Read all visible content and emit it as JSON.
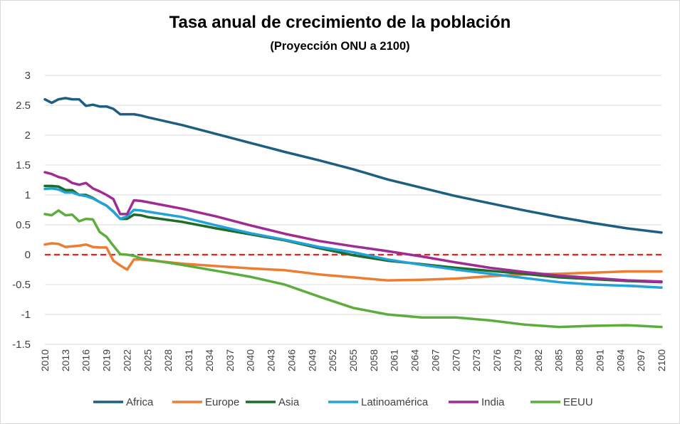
{
  "chart_data": {
    "type": "line",
    "title": "Tasa anual de crecimiento de la población",
    "subtitle": "(Proyección ONU a  2100)",
    "xlabel": "",
    "ylabel": "",
    "xlim": [
      2010,
      2100
    ],
    "ylim": [
      -1.5,
      3
    ],
    "yticks": [
      3,
      2.5,
      2,
      1.5,
      1,
      0.5,
      0,
      -0.5,
      -1,
      -1.5
    ],
    "ytick_labels": [
      "3",
      "2.5",
      "2",
      "1.5",
      "1",
      "0.5",
      "0",
      "-0.5",
      "-1",
      "-1.5"
    ],
    "xticks": [
      2010,
      2013,
      2016,
      2019,
      2022,
      2025,
      2028,
      2031,
      2034,
      2037,
      2040,
      2043,
      2046,
      2049,
      2052,
      2055,
      2058,
      2061,
      2064,
      2067,
      2070,
      2073,
      2076,
      2079,
      2082,
      2085,
      2088,
      2091,
      2094,
      2097,
      2100
    ],
    "grid": true,
    "legend_position": "bottom",
    "reference_line": {
      "y": 0,
      "color": "#e8231f",
      "style": "dashed"
    },
    "series": [
      {
        "name": "Africa",
        "color": "#1c5f82",
        "points": [
          [
            2010,
            2.6
          ],
          [
            2011,
            2.54
          ],
          [
            2012,
            2.6
          ],
          [
            2013,
            2.62
          ],
          [
            2014,
            2.6
          ],
          [
            2015,
            2.6
          ],
          [
            2016,
            2.49
          ],
          [
            2017,
            2.51
          ],
          [
            2018,
            2.48
          ],
          [
            2019,
            2.48
          ],
          [
            2020,
            2.44
          ],
          [
            2021,
            2.35
          ],
          [
            2022,
            2.35
          ],
          [
            2023,
            2.35
          ],
          [
            2024,
            2.33
          ],
          [
            2025,
            2.3
          ],
          [
            2030,
            2.17
          ],
          [
            2035,
            2.02
          ],
          [
            2040,
            1.87
          ],
          [
            2045,
            1.72
          ],
          [
            2050,
            1.58
          ],
          [
            2055,
            1.43
          ],
          [
            2060,
            1.26
          ],
          [
            2065,
            1.12
          ],
          [
            2070,
            0.98
          ],
          [
            2075,
            0.86
          ],
          [
            2080,
            0.74
          ],
          [
            2085,
            0.63
          ],
          [
            2090,
            0.53
          ],
          [
            2095,
            0.44
          ],
          [
            2100,
            0.37
          ]
        ]
      },
      {
        "name": "Europe",
        "color": "#ed7d31",
        "points": [
          [
            2010,
            0.17
          ],
          [
            2011,
            0.19
          ],
          [
            2012,
            0.18
          ],
          [
            2013,
            0.13
          ],
          [
            2014,
            0.14
          ],
          [
            2015,
            0.15
          ],
          [
            2016,
            0.17
          ],
          [
            2017,
            0.13
          ],
          [
            2018,
            0.12
          ],
          [
            2019,
            0.12
          ],
          [
            2020,
            -0.1
          ],
          [
            2021,
            -0.18
          ],
          [
            2022,
            -0.25
          ],
          [
            2023,
            -0.08
          ],
          [
            2024,
            -0.08
          ],
          [
            2025,
            -0.09
          ],
          [
            2030,
            -0.15
          ],
          [
            2035,
            -0.19
          ],
          [
            2040,
            -0.23
          ],
          [
            2045,
            -0.26
          ],
          [
            2050,
            -0.33
          ],
          [
            2055,
            -0.38
          ],
          [
            2060,
            -0.43
          ],
          [
            2065,
            -0.42
          ],
          [
            2070,
            -0.4
          ],
          [
            2075,
            -0.36
          ],
          [
            2080,
            -0.33
          ],
          [
            2085,
            -0.32
          ],
          [
            2090,
            -0.3
          ],
          [
            2095,
            -0.28
          ],
          [
            2100,
            -0.28
          ]
        ]
      },
      {
        "name": "Asia",
        "color": "#1e6b2a",
        "points": [
          [
            2010,
            1.15
          ],
          [
            2011,
            1.15
          ],
          [
            2012,
            1.14
          ],
          [
            2013,
            1.08
          ],
          [
            2014,
            1.08
          ],
          [
            2015,
            1.0
          ],
          [
            2016,
            1.0
          ],
          [
            2017,
            0.95
          ],
          [
            2018,
            0.88
          ],
          [
            2019,
            0.82
          ],
          [
            2020,
            0.72
          ],
          [
            2021,
            0.6
          ],
          [
            2022,
            0.6
          ],
          [
            2023,
            0.67
          ],
          [
            2024,
            0.66
          ],
          [
            2025,
            0.63
          ],
          [
            2030,
            0.55
          ],
          [
            2035,
            0.44
          ],
          [
            2040,
            0.34
          ],
          [
            2045,
            0.24
          ],
          [
            2050,
            0.11
          ],
          [
            2055,
            -0.01
          ],
          [
            2060,
            -0.1
          ],
          [
            2065,
            -0.16
          ],
          [
            2070,
            -0.22
          ],
          [
            2075,
            -0.27
          ],
          [
            2080,
            -0.32
          ],
          [
            2085,
            -0.38
          ],
          [
            2090,
            -0.41
          ],
          [
            2095,
            -0.44
          ],
          [
            2100,
            -0.46
          ]
        ]
      },
      {
        "name": "Latinoamérica",
        "color": "#1fa3d9",
        "points": [
          [
            2010,
            1.1
          ],
          [
            2011,
            1.11
          ],
          [
            2012,
            1.09
          ],
          [
            2013,
            1.04
          ],
          [
            2014,
            1.04
          ],
          [
            2015,
            1.0
          ],
          [
            2016,
            0.98
          ],
          [
            2017,
            0.94
          ],
          [
            2018,
            0.88
          ],
          [
            2019,
            0.82
          ],
          [
            2020,
            0.72
          ],
          [
            2021,
            0.6
          ],
          [
            2022,
            0.64
          ],
          [
            2023,
            0.75
          ],
          [
            2024,
            0.74
          ],
          [
            2025,
            0.72
          ],
          [
            2030,
            0.63
          ],
          [
            2035,
            0.49
          ],
          [
            2040,
            0.36
          ],
          [
            2045,
            0.25
          ],
          [
            2050,
            0.13
          ],
          [
            2055,
            0.04
          ],
          [
            2060,
            -0.08
          ],
          [
            2065,
            -0.17
          ],
          [
            2070,
            -0.25
          ],
          [
            2075,
            -0.32
          ],
          [
            2080,
            -0.39
          ],
          [
            2085,
            -0.46
          ],
          [
            2090,
            -0.5
          ],
          [
            2095,
            -0.52
          ],
          [
            2100,
            -0.55
          ]
        ]
      },
      {
        "name": "India",
        "color": "#a02b93",
        "points": [
          [
            2010,
            1.38
          ],
          [
            2011,
            1.35
          ],
          [
            2012,
            1.3
          ],
          [
            2013,
            1.27
          ],
          [
            2014,
            1.2
          ],
          [
            2015,
            1.17
          ],
          [
            2016,
            1.2
          ],
          [
            2017,
            1.11
          ],
          [
            2018,
            1.06
          ],
          [
            2019,
            1.0
          ],
          [
            2020,
            0.93
          ],
          [
            2021,
            0.68
          ],
          [
            2022,
            0.68
          ],
          [
            2023,
            0.91
          ],
          [
            2024,
            0.9
          ],
          [
            2025,
            0.88
          ],
          [
            2030,
            0.77
          ],
          [
            2035,
            0.64
          ],
          [
            2040,
            0.49
          ],
          [
            2045,
            0.35
          ],
          [
            2050,
            0.23
          ],
          [
            2055,
            0.14
          ],
          [
            2060,
            0.06
          ],
          [
            2065,
            -0.03
          ],
          [
            2070,
            -0.13
          ],
          [
            2075,
            -0.22
          ],
          [
            2080,
            -0.29
          ],
          [
            2085,
            -0.35
          ],
          [
            2090,
            -0.39
          ],
          [
            2095,
            -0.43
          ],
          [
            2100,
            -0.45
          ]
        ]
      },
      {
        "name": "EEUU",
        "color": "#5cad3c",
        "points": [
          [
            2010,
            0.68
          ],
          [
            2011,
            0.66
          ],
          [
            2012,
            0.74
          ],
          [
            2013,
            0.66
          ],
          [
            2014,
            0.67
          ],
          [
            2015,
            0.56
          ],
          [
            2016,
            0.6
          ],
          [
            2017,
            0.59
          ],
          [
            2018,
            0.38
          ],
          [
            2019,
            0.3
          ],
          [
            2020,
            0.15
          ],
          [
            2021,
            0.01
          ],
          [
            2022,
            0.0
          ],
          [
            2023,
            -0.02
          ],
          [
            2024,
            -0.06
          ],
          [
            2025,
            -0.08
          ],
          [
            2030,
            -0.17
          ],
          [
            2035,
            -0.27
          ],
          [
            2040,
            -0.37
          ],
          [
            2045,
            -0.5
          ],
          [
            2050,
            -0.7
          ],
          [
            2055,
            -0.89
          ],
          [
            2060,
            -1.0
          ],
          [
            2065,
            -1.05
          ],
          [
            2070,
            -1.05
          ],
          [
            2075,
            -1.1
          ],
          [
            2080,
            -1.17
          ],
          [
            2085,
            -1.21
          ],
          [
            2090,
            -1.19
          ],
          [
            2095,
            -1.18
          ],
          [
            2100,
            -1.21
          ]
        ]
      }
    ]
  }
}
